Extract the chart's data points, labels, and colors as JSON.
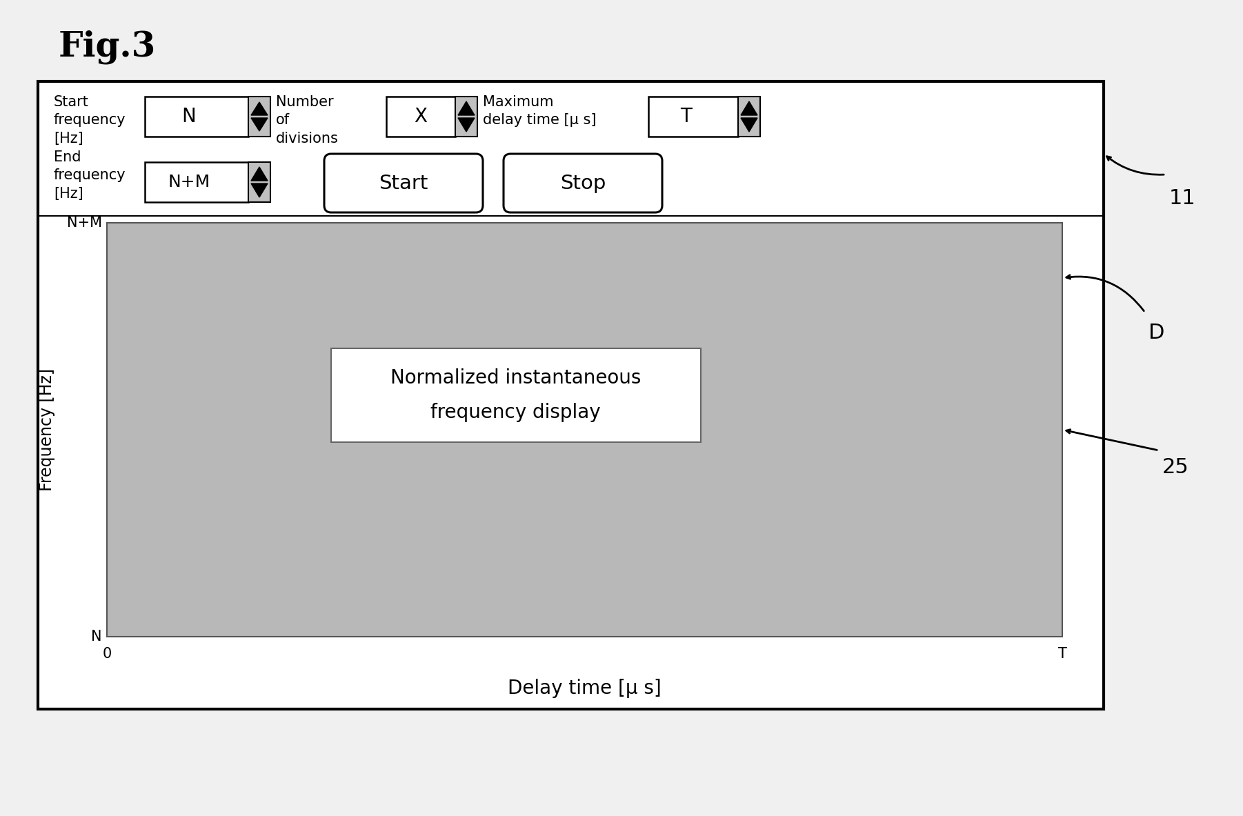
{
  "fig_label": "Fig.3",
  "bg_color": "#f0f0f0",
  "outer_box_fc": "#ffffff",
  "outer_box_ec": "#000000",
  "display_fc": "#b8b8b8",
  "display_ec": "#555555",
  "white": "#ffffff",
  "spinner_fc": "#c0c0c0",
  "annotation_11": "11",
  "annotation_D": "D",
  "annotation_25": "25",
  "start_freq_label": "Start\nfrequency\n[Hz]",
  "end_freq_label": "End\nfrequency\n[Hz]",
  "number_of_divisions_label": "Number\nof\ndivisions",
  "max_delay_label": "Maximum\ndelay time [μ s]",
  "freq_axis_label": "Frequency [Hz]",
  "delay_axis_label": "Delay time [μ s]",
  "display_text_line1": "Normalized instantaneous",
  "display_text_line2": "frequency display",
  "box_N_label": "N",
  "box_NM_label": "N+M",
  "box_X_label": "X",
  "box_T_label": "T",
  "btn_start_label": "Start",
  "btn_stop_label": "Stop",
  "ytick_top": "N+M",
  "ytick_bottom": "N",
  "xtick_left": "0",
  "xtick_right": "T",
  "fig_width": 18.02,
  "fig_height": 11.83,
  "dpi": 100
}
